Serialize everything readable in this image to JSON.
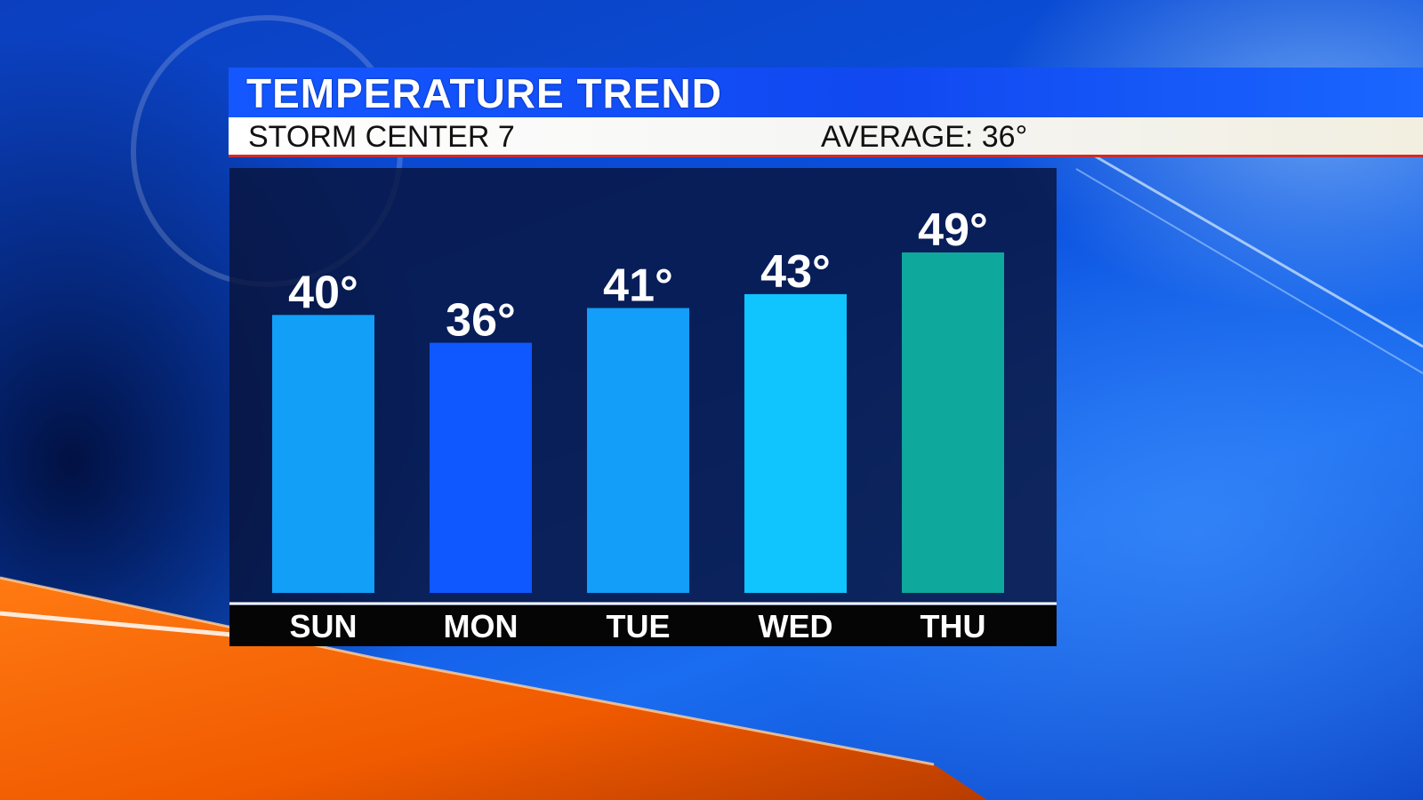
{
  "header": {
    "title": "TEMPERATURE TREND",
    "station": "STORM CENTER 7",
    "average": "AVERAGE: 36°"
  },
  "chart_data": {
    "type": "bar",
    "categories": [
      "SUN",
      "MON",
      "TUE",
      "WED",
      "THU"
    ],
    "values": [
      40,
      36,
      41,
      43,
      49
    ],
    "value_labels": [
      "40°",
      "36°",
      "41°",
      "43°",
      "49°"
    ],
    "colors": [
      "#119ff8",
      "#0f57ff",
      "#129ef9",
      "#10c4fd",
      "#0fa89c"
    ],
    "ylim": [
      0,
      49
    ],
    "grid": false,
    "legend": "none"
  },
  "colors": {
    "title_bar": "#1457ff",
    "subtitle_bar": "#ffffff",
    "accent_line": "#d02b2b",
    "panel": "#08143c",
    "day_strip": "#050505"
  }
}
